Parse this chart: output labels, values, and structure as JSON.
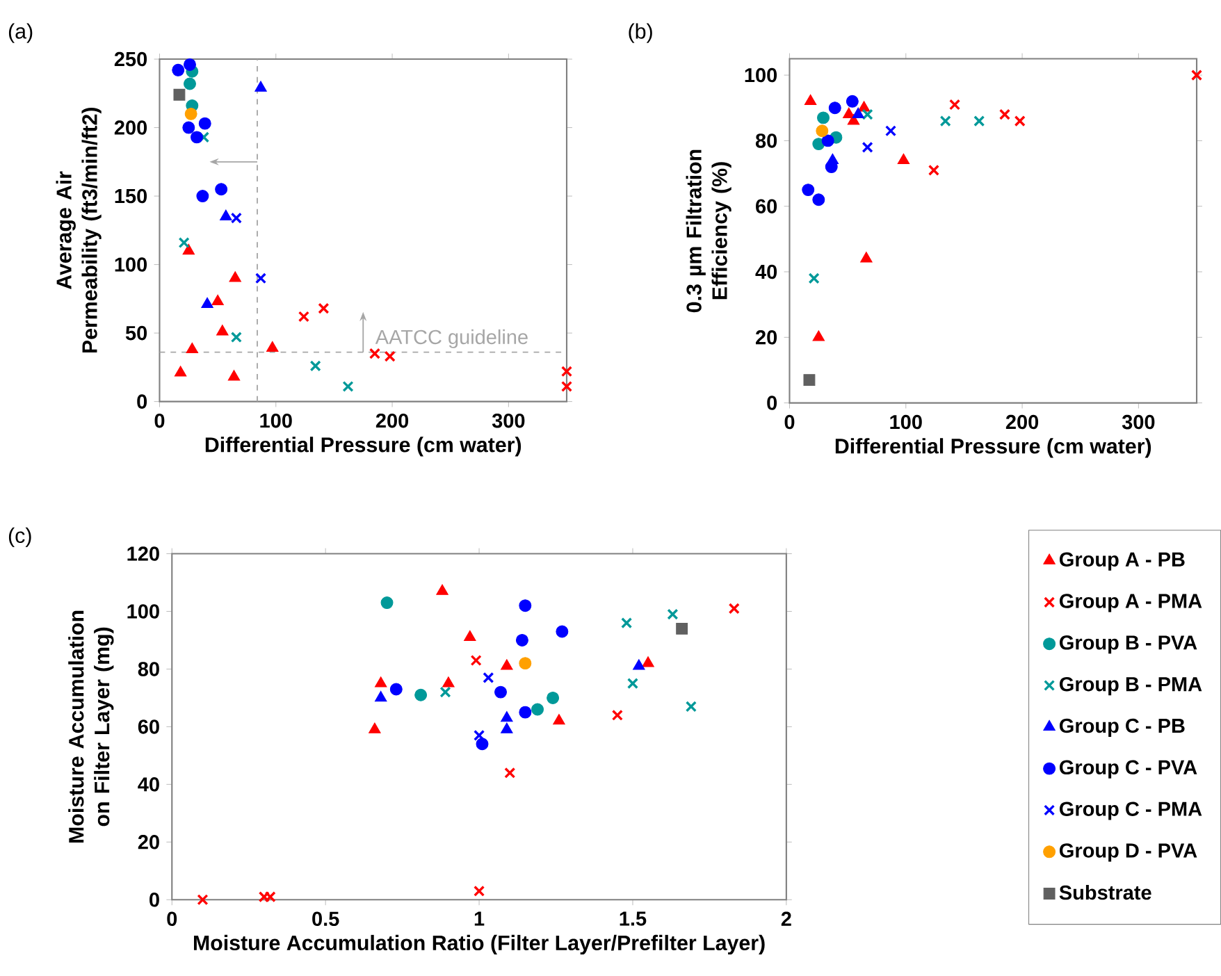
{
  "chart_data": [
    {
      "type": "scatter",
      "xlabel": "Differential Pressure (cm water)",
      "ylabel": "Average Air Permeability (ft3/min/ft2)",
      "annotations": [
        "(a)"
      ],
      "xlim": [
        0,
        350
      ],
      "ylim": [
        0,
        250
      ],
      "xticks": [
        0,
        100,
        200,
        300
      ],
      "yticks": [
        0,
        50,
        100,
        150,
        200,
        250
      ],
      "ref_lines": [
        {
          "axis": "x",
          "value": 84,
          "color": "#a6a6a6",
          "line_style": "dashed"
        },
        {
          "axis": "y",
          "value": 36,
          "label": "AATCC guideline",
          "color": "#a6a6a6",
          "line_style": "dashed"
        }
      ],
      "series": [
        {
          "color": "#ff0000",
          "marker": "triangle",
          "x": [
            25,
            65,
            50,
            54,
            28,
            97,
            18,
            64
          ],
          "values": [
            110,
            90,
            73,
            51,
            38,
            39,
            21,
            18
          ]
        },
        {
          "color": "#ff0000",
          "marker": "cross",
          "x": [
            124,
            141,
            185,
            198,
            350,
            350
          ],
          "values": [
            62,
            68,
            35,
            33,
            22,
            11
          ]
        },
        {
          "color": "#009999",
          "marker": "circle",
          "x": [
            28,
            26,
            28
          ],
          "values": [
            241,
            232,
            216
          ]
        },
        {
          "color": "#009999",
          "marker": "cross",
          "x": [
            21,
            38,
            66,
            134,
            162
          ],
          "values": [
            116,
            193,
            47,
            26,
            11
          ]
        },
        {
          "color": "#0000ff",
          "marker": "triangle",
          "x": [
            87,
            57,
            41
          ],
          "values": [
            229,
            135,
            71
          ]
        },
        {
          "color": "#0000ff",
          "marker": "circle",
          "x": [
            16,
            26,
            25,
            39,
            32,
            37,
            53
          ],
          "values": [
            242,
            246,
            200,
            203,
            193,
            150,
            155
          ]
        },
        {
          "color": "#0000ff",
          "marker": "cross",
          "x": [
            66,
            87
          ],
          "values": [
            134,
            90
          ]
        },
        {
          "color": "#ffa000",
          "marker": "circle",
          "x": [
            27
          ],
          "values": [
            210
          ]
        },
        {
          "color": "#606060",
          "marker": "square",
          "x": [
            17
          ],
          "values": [
            224
          ]
        }
      ]
    },
    {
      "type": "scatter",
      "xlabel": "Differential Pressure (cm water)",
      "ylabel": "0.3 µm Filtration Efficiency (%)",
      "annotations": [
        "(b)"
      ],
      "xlim": [
        0,
        350
      ],
      "ylim": [
        0,
        105
      ],
      "xticks": [
        0,
        100,
        200,
        300
      ],
      "yticks": [
        0,
        20,
        40,
        60,
        80,
        100
      ],
      "series": [
        {
          "color": "#ff0000",
          "marker": "triangle",
          "x": [
            18,
            25,
            66,
            98,
            51,
            55,
            64
          ],
          "values": [
            92,
            20,
            44,
            74,
            88,
            86,
            90
          ]
        },
        {
          "color": "#ff0000",
          "marker": "cross",
          "x": [
            142,
            124,
            185,
            198,
            350
          ],
          "values": [
            91,
            71,
            88,
            86,
            100
          ]
        },
        {
          "color": "#009999",
          "marker": "circle",
          "x": [
            29,
            25,
            40
          ],
          "values": [
            87,
            79,
            81
          ]
        },
        {
          "color": "#009999",
          "marker": "cross",
          "x": [
            21,
            134,
            163,
            67
          ],
          "values": [
            38,
            86,
            86,
            88
          ]
        },
        {
          "color": "#0000ff",
          "marker": "triangle",
          "x": [
            37,
            59
          ],
          "values": [
            74,
            88
          ]
        },
        {
          "color": "#0000ff",
          "marker": "circle",
          "x": [
            16,
            25,
            33,
            39,
            54,
            36
          ],
          "values": [
            65,
            62,
            80,
            90,
            92,
            72
          ]
        },
        {
          "color": "#0000ff",
          "marker": "cross",
          "x": [
            67,
            87
          ],
          "values": [
            78,
            83
          ]
        },
        {
          "color": "#ffa000",
          "marker": "circle",
          "x": [
            28
          ],
          "values": [
            83
          ]
        },
        {
          "color": "#606060",
          "marker": "square",
          "x": [
            17
          ],
          "values": [
            7
          ]
        }
      ]
    },
    {
      "type": "scatter",
      "xlabel": "Moisture Accumulation Ratio (Filter Layer/Prefilter Layer)",
      "ylabel": "Moisture Accumulation on Filter Layer (mg)",
      "annotations": [
        "(c)"
      ],
      "xlim": [
        0,
        2
      ],
      "ylim": [
        0,
        120
      ],
      "xticks": [
        0,
        0.5,
        1,
        1.5,
        2
      ],
      "yticks": [
        0,
        20,
        40,
        60,
        80,
        100,
        120
      ],
      "legend": "right",
      "series": [
        {
          "name": "Group A - PB",
          "color": "#ff0000",
          "marker": "triangle",
          "x": [
            0.88,
            0.97,
            1.09,
            0.68,
            0.9,
            0.66,
            1.55,
            1.26
          ],
          "values": [
            107,
            91,
            81,
            75,
            75,
            59,
            82,
            62
          ]
        },
        {
          "name": "Group A - PMA",
          "color": "#ff0000",
          "marker": "cross",
          "x": [
            0.1,
            0.3,
            0.32,
            1.0,
            0.99,
            1.1,
            1.45,
            1.83
          ],
          "values": [
            0,
            1,
            1,
            3,
            83,
            44,
            64,
            101
          ]
        },
        {
          "name": "Group B - PVA",
          "color": "#009999",
          "marker": "circle",
          "x": [
            0.7,
            0.81,
            1.19,
            1.24
          ],
          "values": [
            103,
            71,
            66,
            70
          ]
        },
        {
          "name": "Group B - PMA",
          "color": "#009999",
          "marker": "cross",
          "x": [
            0.89,
            1.48,
            1.5,
            1.63,
            1.69
          ],
          "values": [
            72,
            96,
            75,
            99,
            67
          ]
        },
        {
          "name": "Group C - PB",
          "color": "#0000ff",
          "marker": "triangle",
          "x": [
            0.68,
            1.09,
            1.09,
            1.52
          ],
          "values": [
            70,
            63,
            59,
            81
          ]
        },
        {
          "name": "Group C - PVA",
          "color": "#0000ff",
          "marker": "circle",
          "x": [
            0.73,
            1.01,
            1.07,
            1.15,
            1.14,
            1.15,
            1.27
          ],
          "values": [
            73,
            54,
            72,
            102,
            90,
            65,
            93
          ]
        },
        {
          "name": "Group C - PMA",
          "color": "#0000ff",
          "marker": "cross",
          "x": [
            1.03,
            1.0
          ],
          "values": [
            77,
            57
          ]
        },
        {
          "name": "Group D - PVA",
          "color": "#ffa000",
          "marker": "circle",
          "x": [
            1.15
          ],
          "values": [
            82
          ]
        },
        {
          "name": "Substrate",
          "color": "#606060",
          "marker": "square",
          "x": [
            1.66
          ],
          "values": [
            94
          ]
        }
      ]
    }
  ]
}
